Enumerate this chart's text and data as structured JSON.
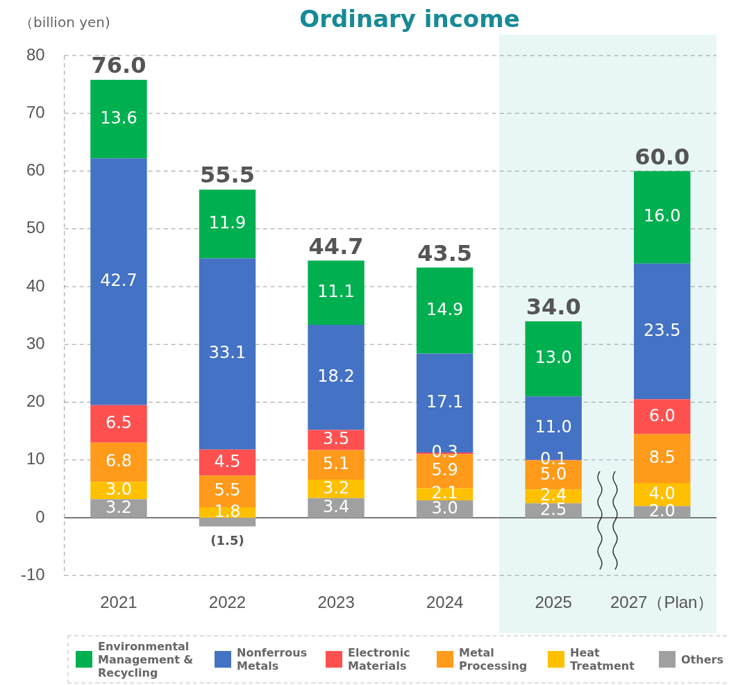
{
  "chart_data": {
    "type": "bar",
    "title": "Ordinary income",
    "ylabel": "（billion yen)",
    "categories": [
      "2021",
      "2022",
      "2023",
      "2024",
      "2025",
      "2027（Plan）"
    ],
    "stacked": true,
    "series": [
      {
        "name": "Others",
        "color": "#a0a0a0",
        "values": [
          3.2,
          -1.5,
          3.4,
          3.0,
          2.5,
          2.0
        ],
        "value_labels": [
          "3.2",
          "(1.5)",
          "3.4",
          "3.0",
          "2.5",
          "2.0"
        ]
      },
      {
        "name": "Heat Treatment",
        "color": "#ffc000",
        "values": [
          3.0,
          1.8,
          3.2,
          2.1,
          2.4,
          4.0
        ],
        "value_labels": [
          "3.0",
          "1.8",
          "3.2",
          "2.1",
          "2.4",
          "4.0"
        ]
      },
      {
        "name": "Metal Processing",
        "color": "#ff9a1a",
        "values": [
          6.8,
          5.5,
          5.1,
          5.9,
          5.0,
          8.5
        ],
        "value_labels": [
          "6.8",
          "5.5",
          "5.1",
          "5.9",
          "5.0",
          "8.5"
        ]
      },
      {
        "name": "Electronic Materials",
        "color": "#ff5050",
        "values": [
          6.5,
          4.5,
          3.5,
          0.3,
          0.1,
          6.0
        ],
        "value_labels": [
          "6.5",
          "4.5",
          "3.5",
          "0.3",
          "0.1",
          "6.0"
        ]
      },
      {
        "name": "Nonferrous Metals",
        "color": "#4472c4",
        "values": [
          42.7,
          33.1,
          18.2,
          17.1,
          11.0,
          23.5
        ],
        "value_labels": [
          "42.7",
          "33.1",
          "18.2",
          "17.1",
          "11.0",
          "23.5"
        ]
      },
      {
        "name": "Environmental Management & Recycling",
        "color": "#00b050",
        "values": [
          13.6,
          11.9,
          11.1,
          14.9,
          13.0,
          16.0
        ],
        "value_labels": [
          "13.6",
          "11.9",
          "11.1",
          "14.9",
          "13.0",
          "16.0"
        ]
      }
    ],
    "totals": [
      "76.0",
      "55.5",
      "44.7",
      "43.5",
      "34.0",
      "60.0"
    ],
    "ylim": [
      -10,
      80
    ],
    "yticks": [
      -10,
      0,
      10,
      20,
      30,
      40,
      50,
      60,
      70,
      80
    ],
    "grid": "y",
    "legend": "bottom",
    "bands": [
      {
        "axis": "x",
        "from": "2025",
        "to": "2027（Plan）",
        "color": "#e8f6f6"
      }
    ]
  }
}
